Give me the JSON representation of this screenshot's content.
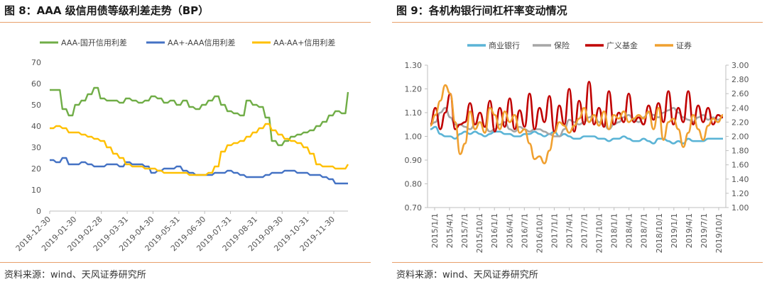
{
  "left": {
    "title": "图 8：AAA 级信用债等级利差走势（BP）",
    "source": "资料来源：wind、天风证券研究所"
  },
  "right": {
    "title": "图 9：各机构银行间杠杆率变动情况",
    "source": "资料来源：wind、天风证券研究所"
  },
  "chart_data": [
    {
      "type": "line",
      "title": "图 8：AAA 级信用债等级利差走势（BP）",
      "ylim": [
        0,
        70
      ],
      "yticks": [
        0,
        10,
        20,
        30,
        40,
        50,
        60,
        70
      ],
      "xlabels": [
        "2018-12-30",
        "2019-01-30",
        "2019-02-28",
        "2019-03-31",
        "2019-04-30",
        "2019-05-31",
        "2019-06-30",
        "2019-07-31",
        "2019-08-31",
        "2019-09-30",
        "2019-10-31",
        "2019-11-30"
      ],
      "x_count": 48,
      "series": [
        {
          "name": "AAA-国开信用利差",
          "color": "#70ad47",
          "values": [
            57,
            57,
            48,
            45,
            50,
            52,
            55,
            58,
            53,
            52,
            52,
            51,
            53,
            52,
            51,
            52,
            54,
            53,
            51,
            52,
            50,
            52,
            49,
            48,
            50,
            52,
            54,
            50,
            47,
            46,
            45,
            52,
            50,
            49,
            44,
            33,
            31,
            33,
            35,
            36,
            37,
            38,
            40,
            42,
            45,
            47,
            46,
            56
          ]
        },
        {
          "name": "AA+-AAA信用利差",
          "color": "#4472c4",
          "values": [
            24,
            23,
            25,
            22,
            22,
            23,
            22,
            21,
            21,
            22,
            22,
            21,
            23,
            22,
            22,
            21,
            18,
            19,
            20,
            20,
            21,
            19,
            18,
            17,
            17,
            17,
            18,
            18,
            19,
            18,
            17,
            16,
            16,
            16,
            17,
            18,
            18,
            19,
            19,
            18,
            18,
            17,
            17,
            16,
            15,
            13,
            13,
            13
          ]
        },
        {
          "name": "AA-AA+信用利差",
          "color": "#ffc000",
          "values": [
            39,
            40,
            39,
            37,
            37,
            36,
            35,
            34,
            33,
            30,
            27,
            25,
            22,
            21,
            21,
            20,
            20,
            19,
            18,
            18,
            18,
            18,
            17,
            17,
            17,
            18,
            21,
            28,
            31,
            32,
            33,
            35,
            37,
            39,
            41,
            38,
            36,
            34,
            33,
            32,
            30,
            27,
            22,
            21,
            21,
            20,
            20,
            22
          ]
        }
      ]
    },
    {
      "type": "line",
      "title": "图 9：各机构银行间杠杆率变动情况",
      "ylim_left": [
        0.7,
        1.3
      ],
      "ylim_right": [
        1.0,
        3.0
      ],
      "yticks_left": [
        "0.70",
        "0.80",
        "0.90",
        "1.00",
        "1.10",
        "1.20",
        "1.30"
      ],
      "yticks_right": [
        "1.00",
        "1.20",
        "1.40",
        "1.60",
        "1.80",
        "2.00",
        "2.20",
        "2.40",
        "2.60",
        "2.80",
        "3.00"
      ],
      "xlabels": [
        "2015/1/1",
        "2015/4/1",
        "2015/7/1",
        "2015/10/1",
        "2016/1/1",
        "2016/4/1",
        "2016/7/1",
        "2016/10/1",
        "2017/1/1",
        "2017/4/1",
        "2017/7/1",
        "2017/10/1",
        "2018/1/1",
        "2018/4/1",
        "2018/7/1",
        "2018/10/1",
        "2019/1/1",
        "2019/4/1",
        "2019/7/1",
        "2019/10/1"
      ],
      "x_count": 60,
      "series": [
        {
          "name": "商业银行",
          "color": "#5bb4d6",
          "axis": "left",
          "values": [
            1.03,
            1.04,
            1.01,
            1.0,
            1.0,
            0.99,
            1.01,
            1.02,
            1.01,
            1.02,
            1.01,
            1.0,
            1.01,
            1.02,
            1.02,
            1.01,
            1.01,
            1.0,
            1.0,
            1.01,
            1.01,
            1.02,
            1.01,
            1.0,
            1.01,
            1.02,
            1.0,
            1.01,
            1.0,
            0.99,
            0.99,
            1.0,
            1.0,
            1.0,
            0.99,
            0.99,
            0.98,
            0.99,
            0.99,
            1.0,
            0.99,
            0.98,
            0.98,
            0.99,
            0.98,
            0.97,
            0.99,
            0.99,
            0.98,
            0.97,
            0.98,
            0.97,
            0.99,
            0.98,
            0.98,
            0.98,
            0.99,
            0.99,
            0.99,
            0.99
          ]
        },
        {
          "name": "保险",
          "color": "#a6a6a6",
          "axis": "left",
          "values": [
            1.05,
            1.06,
            1.1,
            1.12,
            1.08,
            1.05,
            1.05,
            1.04,
            1.03,
            1.05,
            1.06,
            1.04,
            1.02,
            1.03,
            1.05,
            1.06,
            1.03,
            1.02,
            1.04,
            1.03,
            1.02,
            1.03,
            1.03,
            1.02,
            1.01,
            1.0,
            1.0,
            1.03,
            1.07,
            1.06,
            1.05,
            1.06,
            1.08,
            1.09,
            1.06,
            1.05,
            1.03,
            1.05,
            1.06,
            1.08,
            1.09,
            1.07,
            1.06,
            1.08,
            1.1,
            1.09,
            1.08,
            1.1,
            1.11,
            1.12,
            1.1,
            1.08,
            1.07,
            1.06,
            1.08,
            1.09,
            1.07,
            1.08,
            1.07,
            1.08
          ]
        },
        {
          "name": "广义基金",
          "color": "#c00000",
          "axis": "left",
          "values": [
            1.05,
            1.12,
            1.03,
            1.1,
            1.18,
            1.03,
            1.05,
            1.06,
            1.14,
            1.05,
            1.1,
            1.04,
            1.15,
            1.02,
            1.12,
            1.04,
            1.16,
            1.03,
            1.11,
            1.04,
            1.18,
            1.03,
            1.12,
            1.06,
            1.17,
            1.02,
            1.13,
            1.05,
            1.2,
            1.02,
            1.15,
            1.05,
            1.23,
            1.05,
            1.12,
            1.04,
            1.19,
            1.05,
            1.1,
            1.06,
            1.18,
            1.06,
            1.08,
            1.05,
            1.13,
            1.07,
            1.14,
            1.06,
            1.19,
            1.05,
            1.12,
            1.06,
            1.19,
            1.05,
            1.13,
            1.06,
            1.12,
            1.05,
            1.09,
            1.08
          ]
        },
        {
          "name": "证券",
          "color": "#f0a030",
          "axis": "right",
          "values": [
            2.15,
            2.3,
            2.5,
            2.72,
            2.6,
            2.2,
            1.75,
            1.9,
            2.35,
            2.1,
            2.2,
            2.05,
            2.4,
            2.3,
            2.1,
            2.35,
            2.2,
            2.3,
            2.05,
            2.1,
            1.9,
            1.68,
            1.72,
            1.62,
            1.8,
            2.05,
            2.2,
            2.15,
            2.05,
            2.15,
            2.25,
            2.4,
            2.2,
            2.3,
            2.15,
            2.35,
            2.1,
            2.3,
            2.25,
            2.35,
            2.2,
            2.25,
            2.3,
            2.25,
            2.35,
            2.1,
            2.4,
            1.95,
            2.2,
            2.25,
            2.1,
            1.85,
            2.05,
            2.3,
            2.1,
            1.95,
            2.15,
            2.25,
            2.2,
            2.3
          ]
        }
      ]
    }
  ]
}
